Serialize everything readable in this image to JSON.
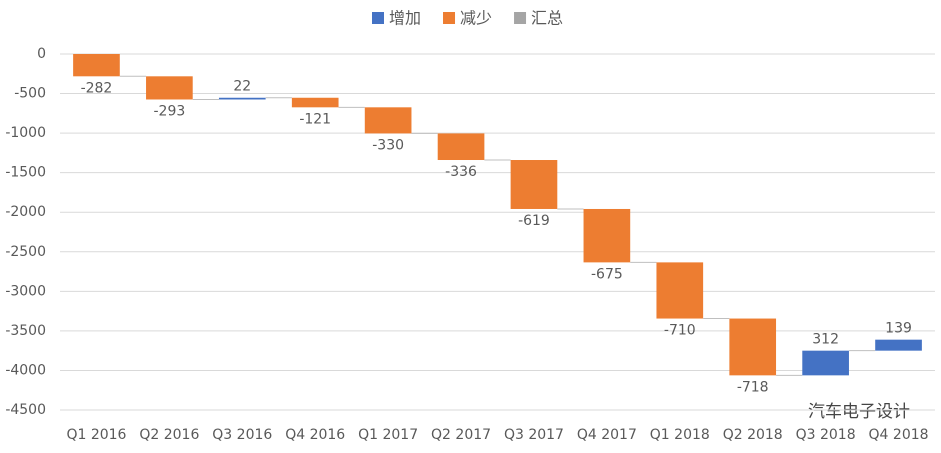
{
  "chart_data": {
    "type": "waterfall",
    "legend": [
      {
        "name": "增加",
        "color": "#4472c4"
      },
      {
        "name": "减少",
        "color": "#ed7d31"
      },
      {
        "name": "汇总",
        "color": "#a5a5a5"
      }
    ],
    "categories": [
      "Q1 2016",
      "Q2 2016",
      "Q3 2016",
      "Q4 2016",
      "Q1 2017",
      "Q2 2017",
      "Q3 2017",
      "Q4 2017",
      "Q1 2018",
      "Q2 2018",
      "Q3 2018",
      "Q4 2018"
    ],
    "values": [
      -282,
      -293,
      22,
      -121,
      -330,
      -336,
      -619,
      -675,
      -710,
      -718,
      312,
      139
    ],
    "ylim": [
      -4500,
      0
    ],
    "yticks": [
      0,
      -500,
      -1000,
      -1500,
      -2000,
      -2500,
      -3000,
      -3500,
      -4000,
      -4500
    ],
    "grid": true,
    "watermark": "汽车电子设计"
  }
}
